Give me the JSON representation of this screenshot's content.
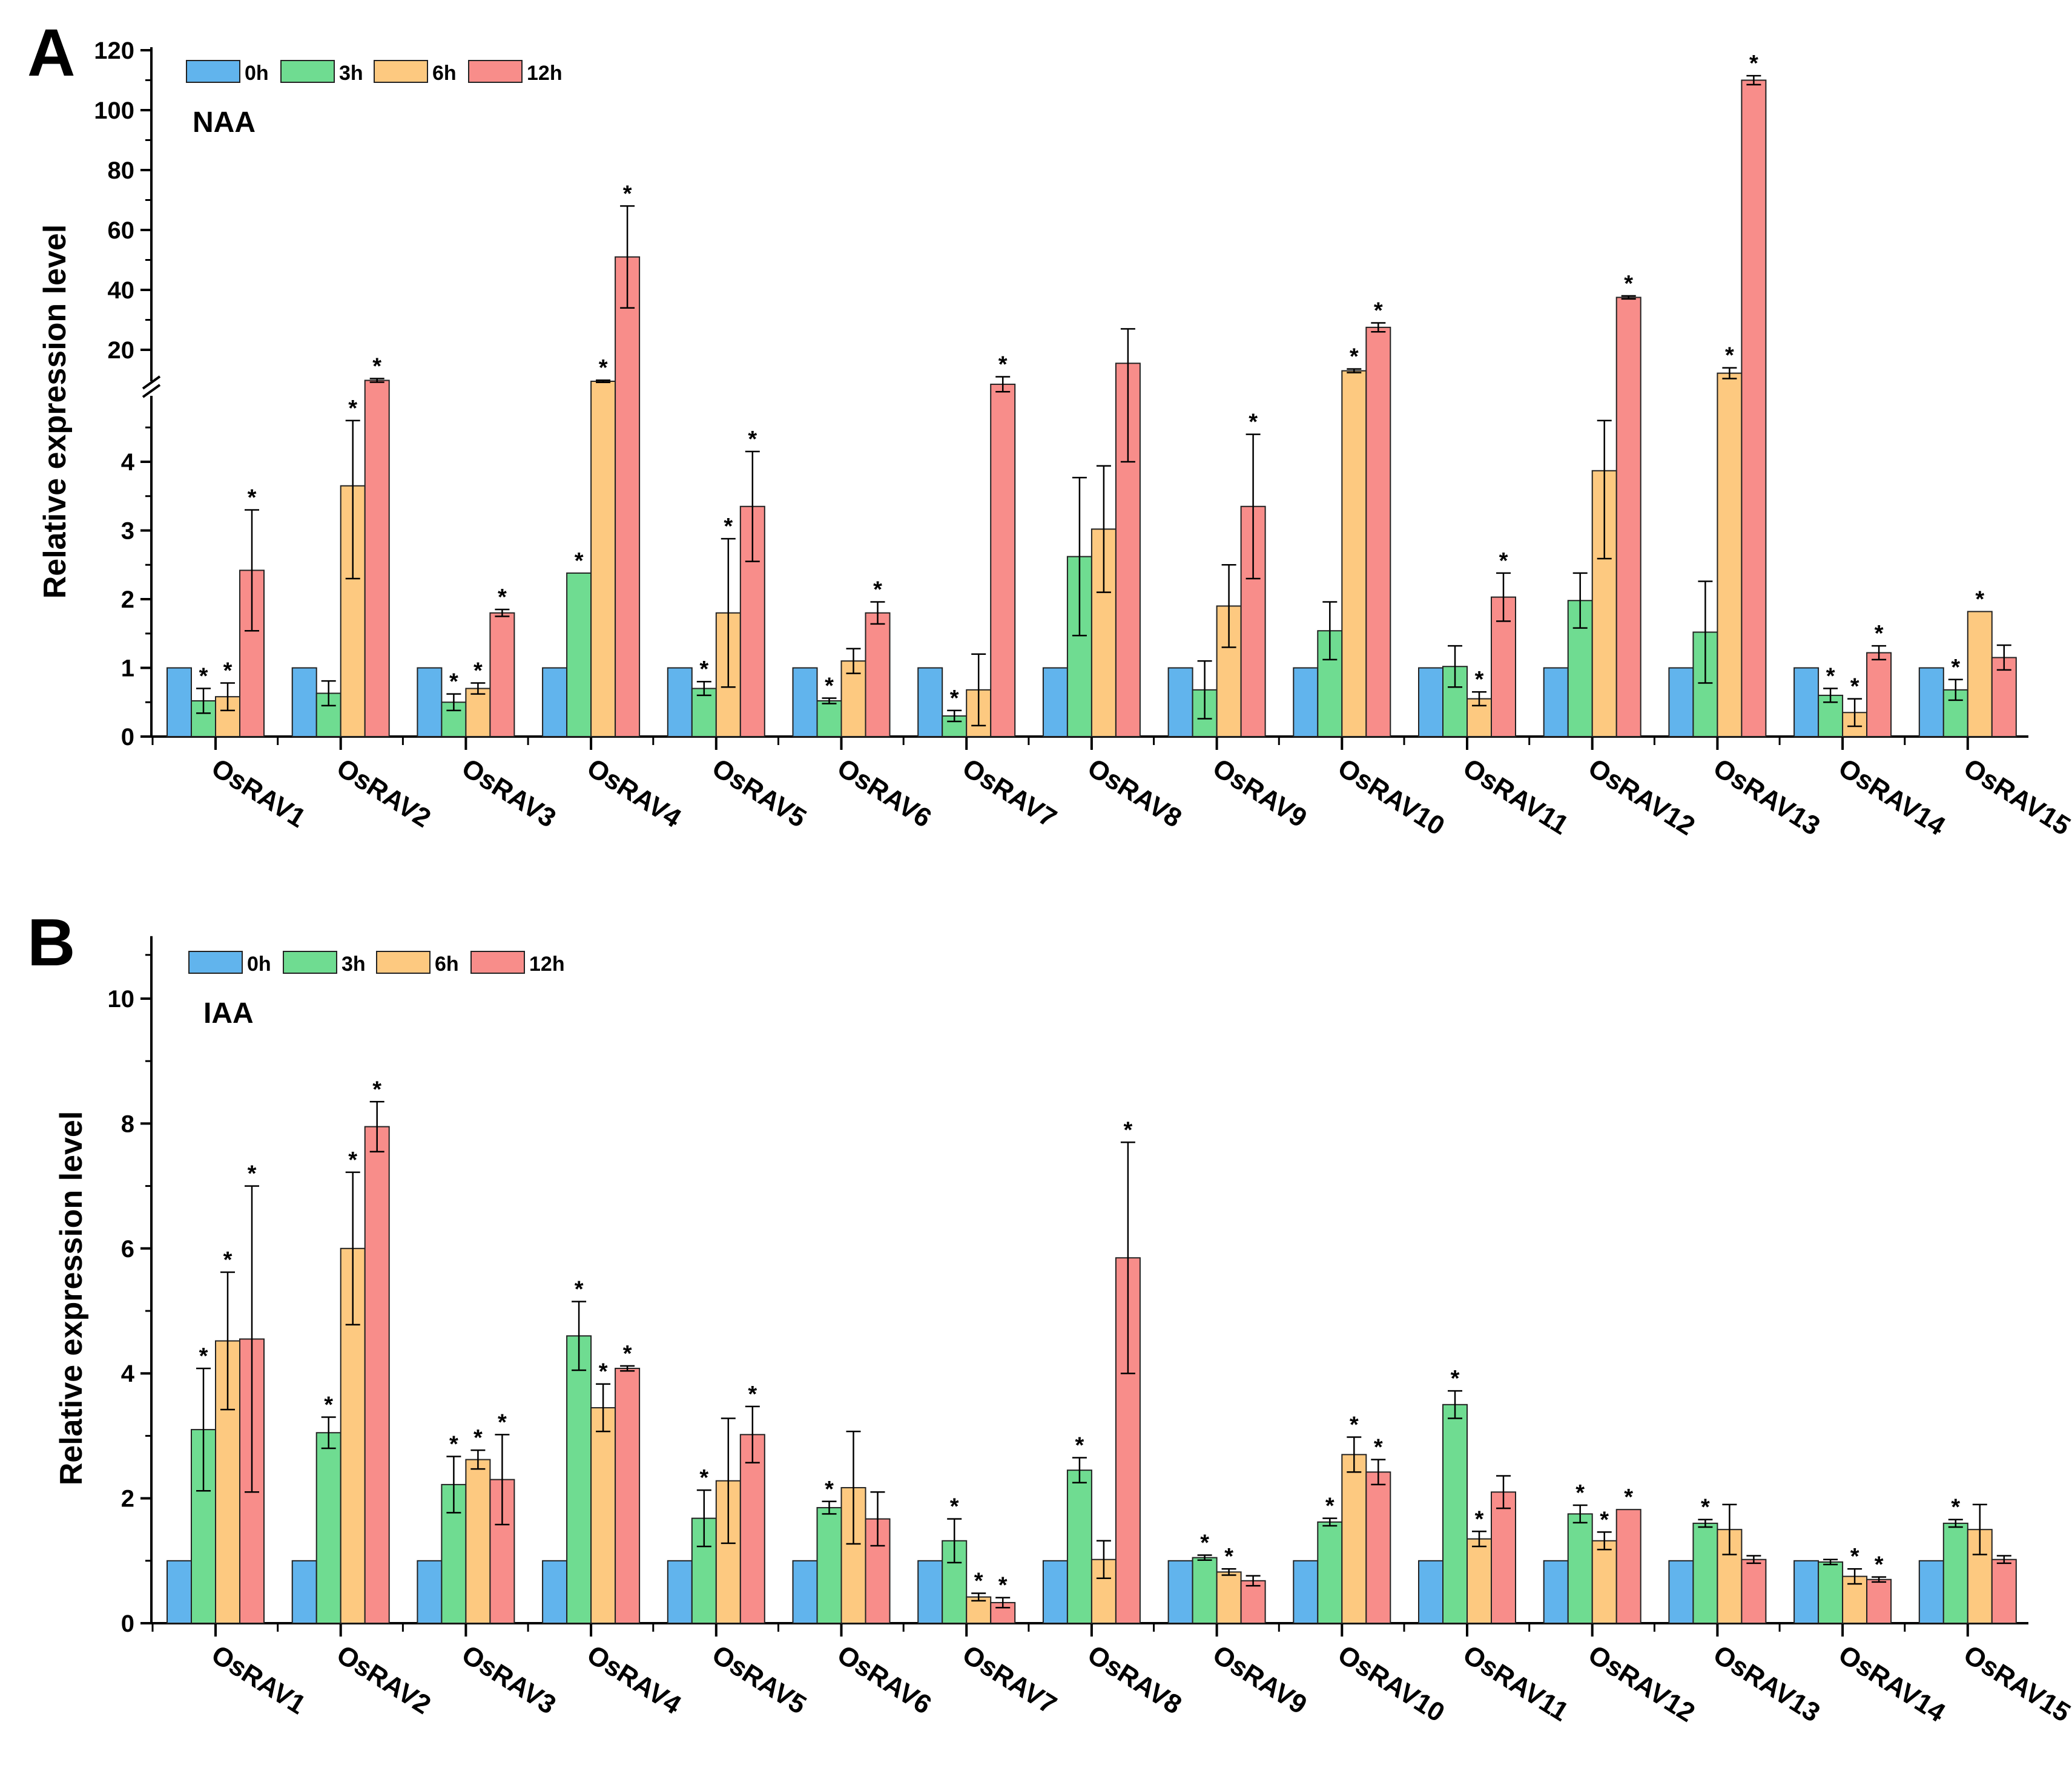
{
  "colors": {
    "0h": "#61b4ed",
    "3h": "#6fdc91",
    "6h": "#fdc980",
    "12h": "#f88d8a",
    "axis": "#000000",
    "bar_edge": "#222222"
  },
  "chart_data": [
    {
      "panel": "A",
      "type": "bar",
      "treatment": "NAA",
      "ylabel": "Relative expression level",
      "y_axis": {
        "broken": true,
        "lower_range": [
          0,
          4.6
        ],
        "lower_ticks": [
          "0",
          "1",
          "2",
          "3",
          "4"
        ],
        "upper_range": [
          6,
          120
        ],
        "upper_ticks": [
          "20",
          "40",
          "60",
          "80",
          "100",
          "120"
        ]
      },
      "legend": [
        "0h",
        "3h",
        "6h",
        "12h"
      ],
      "categories": [
        "OsRAV1",
        "OsRAV2",
        "OsRAV3",
        "OsRAV4",
        "OsRAV5",
        "OsRAV6",
        "OsRAV7",
        "OsRAV8",
        "OsRAV9",
        "OsRAV10",
        "OsRAV11",
        "OsRAV12",
        "OsRAV13",
        "OsRAV14",
        "OsRAV15"
      ],
      "series": [
        {
          "name": "0h",
          "values": [
            1,
            1,
            1,
            1,
            1,
            1,
            1,
            1,
            1,
            1,
            1,
            1,
            1,
            1,
            1
          ],
          "errors": [
            0,
            0,
            0,
            0,
            0,
            0,
            0,
            0,
            0,
            0,
            0,
            0,
            0,
            0,
            0
          ],
          "sig": [
            false,
            false,
            false,
            false,
            false,
            false,
            false,
            false,
            false,
            false,
            false,
            false,
            false,
            false,
            false
          ]
        },
        {
          "name": "3h",
          "values": [
            0.52,
            0.63,
            0.5,
            2.38,
            0.7,
            0.52,
            0.3,
            2.62,
            0.68,
            1.54,
            1.02,
            1.98,
            1.52,
            0.6,
            0.68
          ],
          "errors": [
            0.18,
            0.18,
            0.12,
            0,
            0.1,
            0.04,
            0.08,
            1.15,
            0.42,
            0.42,
            0.3,
            0.4,
            0.74,
            0.1,
            0.15
          ],
          "sig": [
            true,
            false,
            true,
            true,
            true,
            true,
            true,
            false,
            false,
            false,
            false,
            false,
            false,
            true,
            true
          ]
        },
        {
          "name": "6h",
          "values": [
            0.58,
            3.65,
            0.7,
            9.5,
            1.8,
            1.1,
            0.68,
            3.02,
            1.9,
            13.0,
            0.55,
            3.87,
            12.2,
            0.35,
            1.82
          ],
          "errors": [
            0.2,
            1.35,
            0.08,
            0.35,
            1.08,
            0.18,
            0.52,
            0.92,
            0.6,
            0.6,
            0.1,
            1.28,
            1.8,
            0.2,
            0
          ],
          "sig": [
            true,
            true,
            true,
            true,
            true,
            false,
            false,
            false,
            false,
            true,
            true,
            false,
            true,
            true,
            true
          ]
        },
        {
          "name": "12h",
          "values": [
            2.42,
            9.8,
            1.8,
            51,
            3.35,
            1.8,
            8.5,
            15.5,
            3.35,
            27.5,
            2.03,
            37.5,
            110,
            1.22,
            1.15
          ],
          "errors": [
            0.88,
            0.6,
            0.05,
            17,
            0.8,
            0.16,
            2.5,
            11.5,
            1.05,
            1.5,
            0.35,
            0.5,
            1.5,
            0.1,
            0.18
          ],
          "sig": [
            true,
            true,
            true,
            true,
            true,
            true,
            true,
            false,
            true,
            true,
            true,
            true,
            true,
            true,
            false
          ]
        }
      ]
    },
    {
      "panel": "B",
      "type": "bar",
      "treatment": "IAA",
      "ylabel": "Relative expression level",
      "ylim": [
        0,
        11
      ],
      "y_ticks": [
        "0",
        "2",
        "4",
        "6",
        "8",
        "10"
      ],
      "legend": [
        "0h",
        "3h",
        "6h",
        "12h"
      ],
      "categories": [
        "OsRAV1",
        "OsRAV2",
        "OsRAV3",
        "OsRAV4",
        "OsRAV5",
        "OsRAV6",
        "OsRAV7",
        "OsRAV8",
        "OsRAV9",
        "OsRAV10",
        "OsRAV11",
        "OsRAV12",
        "OsRAV13",
        "OsRAV14",
        "OsRAV15"
      ],
      "series": [
        {
          "name": "0h",
          "values": [
            1,
            1,
            1,
            1,
            1,
            1,
            1,
            1,
            1,
            1,
            1,
            1,
            1,
            1,
            1
          ],
          "errors": [
            0,
            0,
            0,
            0,
            0,
            0,
            0,
            0,
            0,
            0,
            0,
            0,
            0,
            0,
            0
          ],
          "sig": [
            false,
            false,
            false,
            false,
            false,
            false,
            false,
            false,
            false,
            false,
            false,
            false,
            false,
            false,
            false
          ]
        },
        {
          "name": "3h",
          "values": [
            3.1,
            3.05,
            2.22,
            4.6,
            1.68,
            1.85,
            1.32,
            2.45,
            1.05,
            1.62,
            3.5,
            1.75,
            1.6,
            0.98,
            1.6
          ],
          "errors": [
            0.98,
            0.25,
            0.45,
            0.55,
            0.45,
            0.1,
            0.35,
            0.2,
            0.04,
            0.06,
            0.22,
            0.14,
            0.06,
            0.04,
            0.06
          ],
          "sig": [
            true,
            true,
            true,
            true,
            true,
            true,
            true,
            true,
            true,
            true,
            true,
            true,
            true,
            false,
            true
          ]
        },
        {
          "name": "6h",
          "values": [
            4.52,
            6.0,
            2.62,
            3.45,
            2.28,
            2.17,
            0.42,
            1.02,
            0.82,
            2.7,
            1.35,
            1.32,
            1.5,
            0.75,
            1.5
          ],
          "errors": [
            1.1,
            1.22,
            0.15,
            0.38,
            1.0,
            0.9,
            0.06,
            0.3,
            0.05,
            0.28,
            0.12,
            0.14,
            0.4,
            0.12,
            0.4
          ],
          "sig": [
            true,
            true,
            true,
            true,
            false,
            false,
            true,
            false,
            true,
            true,
            true,
            true,
            false,
            true,
            false
          ]
        },
        {
          "name": "12h",
          "values": [
            4.55,
            7.95,
            2.3,
            4.08,
            3.02,
            1.67,
            0.33,
            5.85,
            0.68,
            2.42,
            2.1,
            1.82,
            1.02,
            0.7,
            1.02
          ],
          "errors": [
            2.45,
            0.4,
            0.72,
            0.04,
            0.45,
            0.43,
            0.08,
            1.85,
            0.08,
            0.2,
            0.26,
            0,
            0.06,
            0.04,
            0.06
          ],
          "sig": [
            true,
            true,
            true,
            true,
            true,
            false,
            true,
            true,
            false,
            true,
            false,
            true,
            false,
            true,
            false
          ]
        }
      ]
    }
  ],
  "panels": {
    "A": {
      "letter": "A",
      "treatment": "NAA",
      "ylabel": "Relative expression level"
    },
    "B": {
      "letter": "B",
      "treatment": "IAA",
      "ylabel": "Relative expression level"
    }
  },
  "legend_labels": {
    "h0": "0h",
    "h3": "3h",
    "h6": "6h",
    "h12": "12h"
  },
  "significance_marker": "*"
}
